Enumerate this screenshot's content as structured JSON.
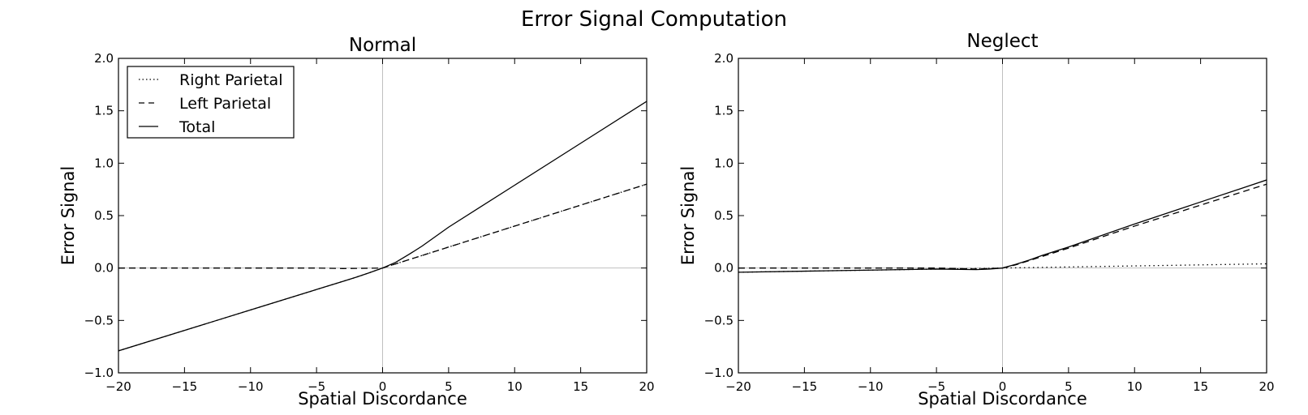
{
  "figure": {
    "title": "Error Signal Computation"
  },
  "chart_data": [
    {
      "type": "line",
      "title": "Normal",
      "xlabel": "Spatial Discordance",
      "ylabel": "Error Signal",
      "xlim": [
        -20,
        20
      ],
      "ylim": [
        -1.0,
        2.0
      ],
      "xticks": [
        "−20",
        "−15",
        "−10",
        "−5",
        "0",
        "5",
        "10",
        "15",
        "20"
      ],
      "yticks": [
        "−1.0",
        "−0.5",
        "0.0",
        "0.5",
        "1.0",
        "1.5",
        "2.0"
      ],
      "reference_lines": {
        "x": 0,
        "y": 0,
        "color": "#c0c0c0"
      },
      "grid": false,
      "legend": "top-left",
      "series": [
        {
          "name": "Right Parietal",
          "style": "dotted",
          "points": [
            [
              -20,
              -0.79
            ],
            [
              -15,
              -0.595
            ],
            [
              -10,
              -0.4
            ],
            [
              -5,
              -0.205
            ],
            [
              -3,
              -0.127
            ],
            [
              -2,
              -0.088
            ],
            [
              -1,
              -0.045
            ],
            [
              0,
              0
            ],
            [
              5,
              0.2
            ],
            [
              10,
              0.4
            ],
            [
              15,
              0.6
            ],
            [
              20,
              0.8
            ]
          ]
        },
        {
          "name": "Left Parietal",
          "style": "dashed",
          "points": [
            [
              -20,
              0
            ],
            [
              -15,
              0
            ],
            [
              -10,
              0
            ],
            [
              -5,
              0
            ],
            [
              -3,
              -0.005
            ],
            [
              -1,
              -0.002
            ],
            [
              0,
              0
            ],
            [
              5,
              0.2
            ],
            [
              10,
              0.4
            ],
            [
              15,
              0.6
            ],
            [
              20,
              0.8
            ]
          ]
        },
        {
          "name": "Total",
          "style": "solid",
          "points": [
            [
              -20,
              -0.79
            ],
            [
              -15,
              -0.595
            ],
            [
              -10,
              -0.4
            ],
            [
              -5,
              -0.205
            ],
            [
              -3,
              -0.127
            ],
            [
              -2,
              -0.088
            ],
            [
              -1,
              -0.045
            ],
            [
              0,
              0
            ],
            [
              1,
              0.055
            ],
            [
              2,
              0.13
            ],
            [
              3,
              0.21
            ],
            [
              5,
              0.39
            ],
            [
              10,
              0.79
            ],
            [
              15,
              1.19
            ],
            [
              20,
              1.59
            ]
          ]
        }
      ]
    },
    {
      "type": "line",
      "title": "Neglect",
      "xlabel": "Spatial Discordance",
      "ylabel": "Error Signal",
      "xlim": [
        -20,
        20
      ],
      "ylim": [
        -1.0,
        2.0
      ],
      "xticks": [
        "−20",
        "−15",
        "−10",
        "−5",
        "0",
        "5",
        "10",
        "15",
        "20"
      ],
      "yticks": [
        "−1.0",
        "−0.5",
        "0.0",
        "0.5",
        "1.0",
        "1.5",
        "2.0"
      ],
      "reference_lines": {
        "x": 0,
        "y": 0,
        "color": "#c0c0c0"
      },
      "grid": false,
      "legend": "none",
      "series": [
        {
          "name": "Right Parietal",
          "style": "dotted",
          "points": [
            [
              -20,
              -0.04
            ],
            [
              -15,
              -0.03
            ],
            [
              -10,
              -0.02
            ],
            [
              -5,
              -0.01
            ],
            [
              -2,
              -0.005
            ],
            [
              0,
              0
            ],
            [
              5,
              0.01
            ],
            [
              10,
              0.02
            ],
            [
              15,
              0.03
            ],
            [
              20,
              0.04
            ]
          ]
        },
        {
          "name": "Left Parietal",
          "style": "dashed",
          "points": [
            [
              -20,
              0
            ],
            [
              -10,
              0
            ],
            [
              -5,
              0
            ],
            [
              -2,
              -0.01
            ],
            [
              -1,
              -0.005
            ],
            [
              0,
              0
            ],
            [
              1,
              0.03
            ],
            [
              2,
              0.07
            ],
            [
              3,
              0.11
            ],
            [
              5,
              0.19
            ],
            [
              10,
              0.4
            ],
            [
              15,
              0.6
            ],
            [
              20,
              0.8
            ]
          ]
        },
        {
          "name": "Total",
          "style": "solid",
          "points": [
            [
              -20,
              -0.04
            ],
            [
              -15,
              -0.03
            ],
            [
              -10,
              -0.02
            ],
            [
              -5,
              -0.01
            ],
            [
              -2,
              -0.015
            ],
            [
              -1,
              -0.01
            ],
            [
              0,
              0
            ],
            [
              1,
              0.035
            ],
            [
              2,
              0.075
            ],
            [
              3,
              0.12
            ],
            [
              5,
              0.2
            ],
            [
              10,
              0.42
            ],
            [
              15,
              0.63
            ],
            [
              20,
              0.84
            ]
          ]
        }
      ]
    }
  ]
}
